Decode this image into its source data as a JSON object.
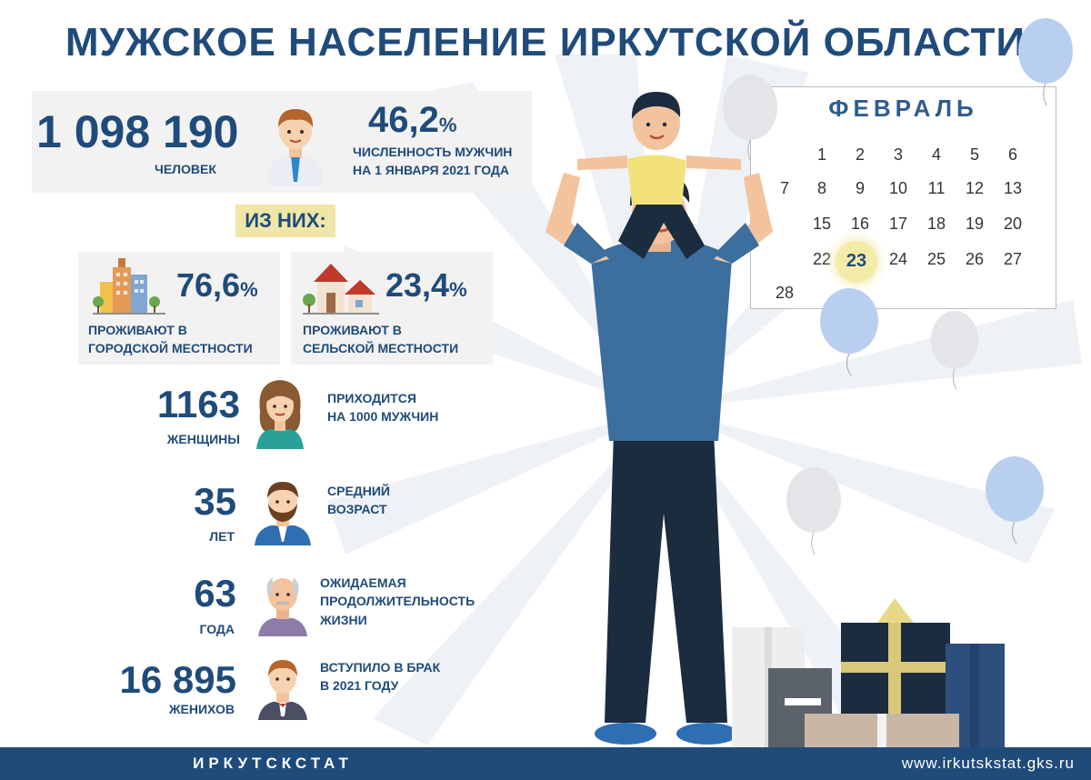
{
  "title": "МУЖСКОЕ НАСЕЛЕНИЕ ИРКУТСКОЙ ОБЛАСТИ",
  "total": {
    "value": "1 098 190",
    "unit": "ЧЕЛОВЕК",
    "percent_number": "46,2",
    "percent_sign": "%",
    "caption_line1": "ЧИСЛЕННОСТЬ МУЖЧИН",
    "caption_line2": "НА 1 ЯНВАРЯ 2021 ГОДА"
  },
  "of_them": "ИЗ НИХ:",
  "urban": {
    "percent_number": "76,6",
    "percent_sign": "%",
    "caption_line1": "ПРОЖИВАЮТ В",
    "caption_line2": "ГОРОДСКОЙ МЕСТНОСТИ"
  },
  "rural": {
    "percent_number": "23,4",
    "percent_sign": "%",
    "caption_line1": "ПРОЖИВАЮТ В",
    "caption_line2": "СЕЛЬСКОЙ МЕСТНОСТИ"
  },
  "women": {
    "value": "1163",
    "unit": "ЖЕНЩИНЫ",
    "caption_line1": "ПРИХОДИТСЯ",
    "caption_line2": "НА 1000 МУЖЧИН"
  },
  "age": {
    "value": "35",
    "unit": "ЛЕТ",
    "caption_line1": "СРЕДНИЙ",
    "caption_line2": "ВОЗРАСТ"
  },
  "life": {
    "value": "63",
    "unit": "ГОДА",
    "caption_line1": "ОЖИДАЕМАЯ",
    "caption_line2": "ПРОДОЛЖИТЕЛЬНОСТЬ",
    "caption_line3": "ЖИЗНИ"
  },
  "marriage": {
    "value": "16 895",
    "unit": "ЖЕНИХОВ",
    "caption_line1": "ВСТУПИЛО В БРАК",
    "caption_line2": "В 2021 ГОДУ"
  },
  "calendar": {
    "month": "ФЕВРАЛЬ",
    "weeks": [
      [
        "",
        "1",
        "2",
        "3",
        "4",
        "5",
        "6"
      ],
      [
        "7",
        "8",
        "9",
        "10",
        "11",
        "12",
        "13"
      ],
      [
        "",
        "15",
        "16",
        "17",
        "18",
        "19",
        "20"
      ],
      [
        "",
        "22",
        "23",
        "24",
        "25",
        "26",
        "27"
      ],
      [
        "28",
        "",
        "",
        "",
        "",
        "",
        ""
      ]
    ],
    "highlighted_day": "23"
  },
  "footer": {
    "org": "ИРКУТСКСТАТ",
    "site": "www.irkutskstat.gks.ru"
  },
  "icons": {
    "businessman": "businessman-icon",
    "city": "city-buildings-icon",
    "houses": "village-houses-icon",
    "woman": "woman-icon",
    "bearded": "bearded-man-icon",
    "elder": "elderly-man-icon",
    "groom": "groom-icon",
    "balloon": "balloon-icon",
    "gifts": "gift-boxes-icon"
  },
  "colors": {
    "primary": "#1f4b7a",
    "highlight": "#f0e6a8",
    "panel": "#f2f2f2",
    "footer": "#1f4b7a"
  }
}
